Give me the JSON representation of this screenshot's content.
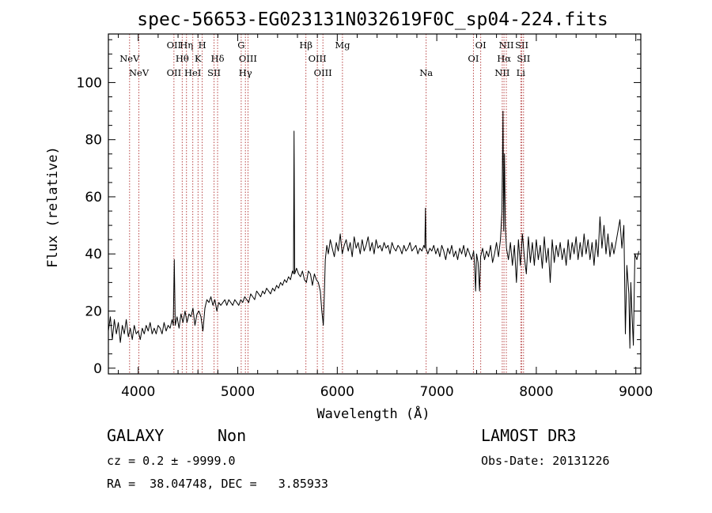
{
  "chart_data": {
    "type": "line",
    "title": "spec-56653-EG023131N032619F0C_sp04-224.fits",
    "xlabel": "Wavelength (Å)",
    "ylabel": "Flux (relative)",
    "xlim": [
      3700,
      9050
    ],
    "ylim": [
      -2,
      117
    ],
    "x_ticks": [
      4000,
      5000,
      6000,
      7000,
      8000,
      9000
    ],
    "y_ticks": [
      0,
      20,
      40,
      60,
      80,
      100
    ],
    "grid": false,
    "series": [
      {
        "name": "flux",
        "points": [
          [
            3700,
            13
          ],
          [
            3720,
            18
          ],
          [
            3740,
            10
          ],
          [
            3760,
            17
          ],
          [
            3780,
            12
          ],
          [
            3800,
            16
          ],
          [
            3820,
            9
          ],
          [
            3840,
            15
          ],
          [
            3860,
            12
          ],
          [
            3880,
            17
          ],
          [
            3900,
            11
          ],
          [
            3920,
            14
          ],
          [
            3940,
            10
          ],
          [
            3960,
            15
          ],
          [
            3980,
            12
          ],
          [
            4000,
            13
          ],
          [
            4020,
            10
          ],
          [
            4040,
            14
          ],
          [
            4060,
            12
          ],
          [
            4080,
            15
          ],
          [
            4100,
            13
          ],
          [
            4120,
            16
          ],
          [
            4140,
            12
          ],
          [
            4160,
            14
          ],
          [
            4180,
            12
          ],
          [
            4200,
            15
          ],
          [
            4220,
            14
          ],
          [
            4240,
            12
          ],
          [
            4260,
            16
          ],
          [
            4280,
            13
          ],
          [
            4300,
            15
          ],
          [
            4320,
            14
          ],
          [
            4340,
            17
          ],
          [
            4352,
            15
          ],
          [
            4362,
            38
          ],
          [
            4372,
            15
          ],
          [
            4390,
            18
          ],
          [
            4410,
            14
          ],
          [
            4430,
            19
          ],
          [
            4450,
            16
          ],
          [
            4470,
            20
          ],
          [
            4490,
            16
          ],
          [
            4510,
            19
          ],
          [
            4530,
            18
          ],
          [
            4550,
            21
          ],
          [
            4570,
            15
          ],
          [
            4590,
            19
          ],
          [
            4610,
            20
          ],
          [
            4630,
            18
          ],
          [
            4650,
            13
          ],
          [
            4670,
            21
          ],
          [
            4690,
            24
          ],
          [
            4710,
            23
          ],
          [
            4730,
            25
          ],
          [
            4750,
            22
          ],
          [
            4770,
            24
          ],
          [
            4790,
            20
          ],
          [
            4810,
            23
          ],
          [
            4830,
            22
          ],
          [
            4850,
            23
          ],
          [
            4870,
            24
          ],
          [
            4890,
            22
          ],
          [
            4910,
            24
          ],
          [
            4930,
            23
          ],
          [
            4950,
            22
          ],
          [
            4970,
            24
          ],
          [
            4990,
            23
          ],
          [
            5010,
            22
          ],
          [
            5030,
            24
          ],
          [
            5050,
            23
          ],
          [
            5070,
            25
          ],
          [
            5090,
            24
          ],
          [
            5110,
            23
          ],
          [
            5130,
            26
          ],
          [
            5150,
            25
          ],
          [
            5170,
            24
          ],
          [
            5190,
            27
          ],
          [
            5210,
            26
          ],
          [
            5230,
            25
          ],
          [
            5250,
            27
          ],
          [
            5270,
            26
          ],
          [
            5290,
            28
          ],
          [
            5310,
            27
          ],
          [
            5330,
            26
          ],
          [
            5350,
            28
          ],
          [
            5370,
            27
          ],
          [
            5390,
            29
          ],
          [
            5410,
            28
          ],
          [
            5430,
            30
          ],
          [
            5450,
            29
          ],
          [
            5470,
            31
          ],
          [
            5490,
            30
          ],
          [
            5510,
            32
          ],
          [
            5530,
            31
          ],
          [
            5550,
            34
          ],
          [
            5560,
            33
          ],
          [
            5566,
            83
          ],
          [
            5572,
            33
          ],
          [
            5590,
            35
          ],
          [
            5610,
            33
          ],
          [
            5630,
            32
          ],
          [
            5650,
            34
          ],
          [
            5670,
            31
          ],
          [
            5690,
            30
          ],
          [
            5710,
            34
          ],
          [
            5730,
            33
          ],
          [
            5750,
            29
          ],
          [
            5770,
            33
          ],
          [
            5790,
            31
          ],
          [
            5810,
            30
          ],
          [
            5830,
            27
          ],
          [
            5845,
            20
          ],
          [
            5860,
            15
          ],
          [
            5870,
            26
          ],
          [
            5880,
            38
          ],
          [
            5895,
            43
          ],
          [
            5910,
            40
          ],
          [
            5930,
            45
          ],
          [
            5950,
            42
          ],
          [
            5970,
            39
          ],
          [
            5990,
            44
          ],
          [
            6010,
            41
          ],
          [
            6030,
            47
          ],
          [
            6050,
            40
          ],
          [
            6070,
            43
          ],
          [
            6090,
            45
          ],
          [
            6110,
            41
          ],
          [
            6130,
            44
          ],
          [
            6150,
            39
          ],
          [
            6170,
            46
          ],
          [
            6190,
            42
          ],
          [
            6210,
            44
          ],
          [
            6230,
            40
          ],
          [
            6250,
            45
          ],
          [
            6270,
            41
          ],
          [
            6290,
            43
          ],
          [
            6310,
            46
          ],
          [
            6330,
            41
          ],
          [
            6350,
            44
          ],
          [
            6370,
            40
          ],
          [
            6390,
            45
          ],
          [
            6410,
            42
          ],
          [
            6430,
            43
          ],
          [
            6450,
            41
          ],
          [
            6470,
            44
          ],
          [
            6490,
            42
          ],
          [
            6510,
            43
          ],
          [
            6530,
            40
          ],
          [
            6550,
            44
          ],
          [
            6570,
            42
          ],
          [
            6590,
            41
          ],
          [
            6610,
            43
          ],
          [
            6630,
            42
          ],
          [
            6650,
            40
          ],
          [
            6670,
            43
          ],
          [
            6690,
            41
          ],
          [
            6710,
            42
          ],
          [
            6730,
            44
          ],
          [
            6750,
            41
          ],
          [
            6770,
            42
          ],
          [
            6790,
            43
          ],
          [
            6810,
            40
          ],
          [
            6830,
            42
          ],
          [
            6850,
            41
          ],
          [
            6870,
            43
          ],
          [
            6880,
            42
          ],
          [
            6886,
            56
          ],
          [
            6892,
            42
          ],
          [
            6910,
            40
          ],
          [
            6930,
            42
          ],
          [
            6950,
            41
          ],
          [
            6970,
            43
          ],
          [
            6990,
            40
          ],
          [
            7010,
            42
          ],
          [
            7030,
            39
          ],
          [
            7050,
            43
          ],
          [
            7070,
            41
          ],
          [
            7090,
            38
          ],
          [
            7110,
            42
          ],
          [
            7130,
            40
          ],
          [
            7150,
            43
          ],
          [
            7170,
            39
          ],
          [
            7190,
            41
          ],
          [
            7210,
            38
          ],
          [
            7230,
            42
          ],
          [
            7250,
            40
          ],
          [
            7270,
            43
          ],
          [
            7290,
            39
          ],
          [
            7310,
            42
          ],
          [
            7330,
            40
          ],
          [
            7350,
            38
          ],
          [
            7370,
            41
          ],
          [
            7380,
            36
          ],
          [
            7390,
            27
          ],
          [
            7400,
            40
          ],
          [
            7415,
            37
          ],
          [
            7430,
            27
          ],
          [
            7440,
            39
          ],
          [
            7460,
            42
          ],
          [
            7480,
            38
          ],
          [
            7500,
            41
          ],
          [
            7520,
            39
          ],
          [
            7540,
            43
          ],
          [
            7560,
            37
          ],
          [
            7580,
            40
          ],
          [
            7600,
            44
          ],
          [
            7620,
            39
          ],
          [
            7640,
            45
          ],
          [
            7655,
            55
          ],
          [
            7665,
            90
          ],
          [
            7672,
            48
          ],
          [
            7680,
            75
          ],
          [
            7688,
            50
          ],
          [
            7700,
            42
          ],
          [
            7720,
            38
          ],
          [
            7740,
            44
          ],
          [
            7760,
            36
          ],
          [
            7780,
            43
          ],
          [
            7800,
            30
          ],
          [
            7820,
            45
          ],
          [
            7840,
            36
          ],
          [
            7860,
            47
          ],
          [
            7880,
            39
          ],
          [
            7900,
            33
          ],
          [
            7920,
            46
          ],
          [
            7940,
            37
          ],
          [
            7960,
            44
          ],
          [
            7980,
            36
          ],
          [
            8000,
            45
          ],
          [
            8020,
            38
          ],
          [
            8040,
            43
          ],
          [
            8060,
            35
          ],
          [
            8080,
            46
          ],
          [
            8100,
            37
          ],
          [
            8120,
            42
          ],
          [
            8140,
            30
          ],
          [
            8160,
            45
          ],
          [
            8180,
            37
          ],
          [
            8200,
            43
          ],
          [
            8220,
            39
          ],
          [
            8240,
            44
          ],
          [
            8260,
            38
          ],
          [
            8280,
            42
          ],
          [
            8300,
            36
          ],
          [
            8320,
            45
          ],
          [
            8340,
            38
          ],
          [
            8360,
            44
          ],
          [
            8380,
            40
          ],
          [
            8400,
            46
          ],
          [
            8420,
            38
          ],
          [
            8440,
            44
          ],
          [
            8460,
            39
          ],
          [
            8480,
            47
          ],
          [
            8500,
            40
          ],
          [
            8520,
            45
          ],
          [
            8540,
            38
          ],
          [
            8560,
            44
          ],
          [
            8580,
            36
          ],
          [
            8600,
            45
          ],
          [
            8620,
            39
          ],
          [
            8640,
            53
          ],
          [
            8660,
            42
          ],
          [
            8680,
            50
          ],
          [
            8700,
            40
          ],
          [
            8720,
            47
          ],
          [
            8740,
            39
          ],
          [
            8760,
            44
          ],
          [
            8780,
            40
          ],
          [
            8800,
            44
          ],
          [
            8820,
            48
          ],
          [
            8840,
            52
          ],
          [
            8860,
            42
          ],
          [
            8880,
            50
          ],
          [
            8895,
            12
          ],
          [
            8910,
            36
          ],
          [
            8930,
            26
          ],
          [
            8940,
            7
          ],
          [
            8950,
            30
          ],
          [
            8960,
            20
          ],
          [
            8975,
            8
          ],
          [
            8990,
            40
          ],
          [
            9010,
            38
          ],
          [
            9030,
            41
          ]
        ]
      }
    ],
    "emission_lines": [
      {
        "name": "NeV",
        "wavelength": 3426,
        "row": 2
      },
      {
        "name": "NeV",
        "wavelength": 3346,
        "row": 1
      },
      {
        "name": "OII",
        "wavelength": 3727,
        "row": 0
      },
      {
        "name": "Hη",
        "wavelength": 3835,
        "row": 0
      },
      {
        "name": "H",
        "wavelength": 3970,
        "row": 0
      },
      {
        "name": "Hθ",
        "wavelength": 3798,
        "row": 1
      },
      {
        "name": "K",
        "wavelength": 3934,
        "row": 1
      },
      {
        "name": "Hδ",
        "wavelength": 4102,
        "row": 1
      },
      {
        "name": "OII",
        "wavelength": 3727,
        "row": 2
      },
      {
        "name": "HeI",
        "wavelength": 3889,
        "row": 2
      },
      {
        "name": "SII",
        "wavelength": 4072,
        "row": 2
      },
      {
        "name": "G",
        "wavelength": 4305,
        "row": 0
      },
      {
        "name": "OIII",
        "wavelength": 4363,
        "row": 1
      },
      {
        "name": "Hγ",
        "wavelength": 4341,
        "row": 2
      },
      {
        "name": "Hβ",
        "wavelength": 4861,
        "row": 0
      },
      {
        "name": "OIII",
        "wavelength": 4959,
        "row": 1
      },
      {
        "name": "OIII",
        "wavelength": 5007,
        "row": 2
      },
      {
        "name": "Mg",
        "wavelength": 5175,
        "row": 0
      },
      {
        "name": "Na",
        "wavelength": 5894,
        "row": 2
      },
      {
        "name": "OI",
        "wavelength": 6363,
        "row": 0
      },
      {
        "name": "OI",
        "wavelength": 6300,
        "row": 1
      },
      {
        "name": "NII",
        "wavelength": 6583,
        "row": 0
      },
      {
        "name": "SII",
        "wavelength": 6716,
        "row": 0
      },
      {
        "name": "Hα",
        "wavelength": 6563,
        "row": 1
      },
      {
        "name": "SII",
        "wavelength": 6731,
        "row": 1
      },
      {
        "name": "NII",
        "wavelength": 6548,
        "row": 2
      },
      {
        "name": "Li",
        "wavelength": 6707,
        "row": 2
      }
    ],
    "redshift_factor": 1.1695
  },
  "info": {
    "class_label": "GALAXY",
    "subclass_label": "Non",
    "survey": "LAMOST DR3",
    "cz_line": "cz = 0.2 ± -9999.0",
    "obs_date": "Obs-Date: 20131226",
    "radec_line": "RA =  38.04748, DEC =   3.85933"
  }
}
